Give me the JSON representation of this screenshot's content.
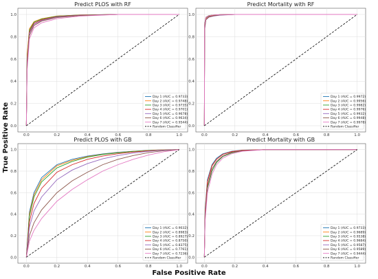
{
  "figure": {
    "xlabel": "False Positive Rate",
    "ylabel": "True Positive Rate"
  },
  "chart_data": [
    {
      "type": "line",
      "title": "Predict PLOS with RF",
      "xlim": [
        0,
        1
      ],
      "ylim": [
        0,
        1
      ],
      "xticks": [
        "0.0",
        "0.2",
        "0.4",
        "0.6",
        "0.8",
        "1.0"
      ],
      "yticks": [
        "0.0",
        "0.2",
        "0.4",
        "0.6",
        "0.8",
        "1.0"
      ],
      "grid": true,
      "legend": "bottom-right",
      "series": [
        {
          "name": "Day 1 (AUC = 0.9733)",
          "color": "#1f77b4",
          "x": [
            0,
            0.005,
            0.02,
            0.05,
            0.1,
            0.2,
            0.35,
            0.6,
            1
          ],
          "y": [
            0,
            0.62,
            0.86,
            0.93,
            0.96,
            0.985,
            0.995,
            1,
            1
          ]
        },
        {
          "name": "Day 2 (AUC = 0.9748)",
          "color": "#ff7f0e",
          "x": [
            0,
            0.005,
            0.02,
            0.05,
            0.1,
            0.2,
            0.35,
            0.6,
            1
          ],
          "y": [
            0,
            0.64,
            0.87,
            0.935,
            0.962,
            0.986,
            0.995,
            1,
            1
          ]
        },
        {
          "name": "Day 3 (AUC = 0.9735)",
          "color": "#2ca02c",
          "x": [
            0,
            0.005,
            0.02,
            0.05,
            0.1,
            0.2,
            0.35,
            0.6,
            1
          ],
          "y": [
            0,
            0.6,
            0.855,
            0.93,
            0.958,
            0.984,
            0.994,
            1,
            1
          ]
        },
        {
          "name": "Day 4 (AUC = 0.9701)",
          "color": "#d62728",
          "x": [
            0,
            0.005,
            0.02,
            0.05,
            0.1,
            0.2,
            0.35,
            0.6,
            1
          ],
          "y": [
            0,
            0.58,
            0.84,
            0.92,
            0.952,
            0.98,
            0.993,
            1,
            1
          ]
        },
        {
          "name": "Day 5 (AUC = 0.9678)",
          "color": "#9467bd",
          "x": [
            0,
            0.005,
            0.02,
            0.05,
            0.1,
            0.2,
            0.35,
            0.6,
            1
          ],
          "y": [
            0,
            0.56,
            0.83,
            0.91,
            0.946,
            0.977,
            0.992,
            1,
            1
          ]
        },
        {
          "name": "Day 6 (AUC = 0.9634)",
          "color": "#8c564b",
          "x": [
            0,
            0.005,
            0.02,
            0.05,
            0.1,
            0.2,
            0.35,
            0.6,
            1
          ],
          "y": [
            0,
            0.54,
            0.81,
            0.9,
            0.94,
            0.972,
            0.99,
            1,
            1
          ]
        },
        {
          "name": "Day 7 (AUC = 0.9544)",
          "color": "#e377c2",
          "x": [
            0,
            0.005,
            0.02,
            0.05,
            0.1,
            0.2,
            0.35,
            0.6,
            1
          ],
          "y": [
            0,
            0.5,
            0.78,
            0.88,
            0.925,
            0.962,
            0.985,
            1,
            1
          ]
        },
        {
          "name": "Random Classifier",
          "color": "#000000",
          "dashed": true,
          "x": [
            0,
            1
          ],
          "y": [
            0,
            1
          ]
        }
      ]
    },
    {
      "type": "line",
      "title": "Predict Mortality with RF",
      "xlim": [
        0,
        1
      ],
      "ylim": [
        0,
        1
      ],
      "xticks": [
        "0.0",
        "0.2",
        "0.4",
        "0.6",
        "0.8",
        "1.0"
      ],
      "yticks": [
        "0.0",
        "0.2",
        "0.4",
        "0.6",
        "0.8",
        "1.0"
      ],
      "grid": true,
      "legend": "bottom-right",
      "series": [
        {
          "name": "Day 1 (AUC = 0.9972)",
          "color": "#1f77b4",
          "x": [
            0,
            0.002,
            0.01,
            0.03,
            0.06,
            0.1,
            0.2,
            1
          ],
          "y": [
            0,
            0.9,
            0.97,
            0.985,
            0.993,
            0.997,
            1,
            1
          ]
        },
        {
          "name": "Day 2 (AUC = 0.9956)",
          "color": "#ff7f0e",
          "x": [
            0,
            0.002,
            0.01,
            0.03,
            0.06,
            0.1,
            0.2,
            1
          ],
          "y": [
            0,
            0.88,
            0.96,
            0.98,
            0.99,
            0.996,
            1,
            1
          ]
        },
        {
          "name": "Day 3 (AUC = 0.9982)",
          "color": "#2ca02c",
          "x": [
            0,
            0.002,
            0.01,
            0.03,
            0.06,
            0.1,
            0.2,
            1
          ],
          "y": [
            0,
            0.92,
            0.975,
            0.99,
            0.995,
            0.998,
            1,
            1
          ]
        },
        {
          "name": "Day 4 (AUC = 0.9976)",
          "color": "#d62728",
          "x": [
            0,
            0.002,
            0.01,
            0.03,
            0.06,
            0.1,
            0.2,
            1
          ],
          "y": [
            0,
            0.91,
            0.972,
            0.988,
            0.994,
            0.998,
            1,
            1
          ]
        },
        {
          "name": "Day 5 (AUC = 0.9932)",
          "color": "#9467bd",
          "x": [
            0,
            0.002,
            0.01,
            0.03,
            0.06,
            0.1,
            0.2,
            1
          ],
          "y": [
            0,
            0.86,
            0.95,
            0.975,
            0.985,
            0.993,
            1,
            1
          ]
        },
        {
          "name": "Day 6 (AUC = 0.9948)",
          "color": "#8c564b",
          "x": [
            0,
            0.002,
            0.01,
            0.03,
            0.06,
            0.1,
            0.2,
            1
          ],
          "y": [
            0,
            0.87,
            0.955,
            0.978,
            0.988,
            0.995,
            1,
            1
          ]
        },
        {
          "name": "Day 7 (AUC = 0.9978)",
          "color": "#e377c2",
          "x": [
            0,
            0.002,
            0.01,
            0.03,
            0.06,
            0.1,
            0.2,
            1
          ],
          "y": [
            0,
            0.91,
            0.974,
            0.989,
            0.995,
            0.998,
            1,
            1
          ]
        },
        {
          "name": "Random Classifier",
          "color": "#000000",
          "dashed": true,
          "x": [
            0,
            1
          ],
          "y": [
            0,
            1
          ]
        }
      ]
    },
    {
      "type": "line",
      "title": "Predict PLOS with GB",
      "xlim": [
        0,
        1
      ],
      "ylim": [
        0,
        1
      ],
      "xticks": [
        "0.0",
        "0.2",
        "0.4",
        "0.6",
        "0.8",
        "1.0"
      ],
      "yticks": [
        "0.0",
        "0.2",
        "0.4",
        "0.6",
        "0.8",
        "1.0"
      ],
      "grid": true,
      "legend": "bottom-right",
      "series": [
        {
          "name": "Day 1 (AUC = 0.9032)",
          "color": "#1f77b4",
          "x": [
            0,
            0.02,
            0.05,
            0.1,
            0.2,
            0.3,
            0.4,
            0.5,
            0.6,
            0.7,
            0.8,
            0.9,
            1
          ],
          "y": [
            0,
            0.42,
            0.6,
            0.74,
            0.86,
            0.91,
            0.94,
            0.96,
            0.975,
            0.985,
            0.993,
            0.998,
            1
          ]
        },
        {
          "name": "Day 2 (AUC = 0.8983)",
          "color": "#ff7f0e",
          "x": [
            0,
            0.02,
            0.05,
            0.1,
            0.2,
            0.3,
            0.4,
            0.5,
            0.6,
            0.7,
            0.8,
            0.9,
            1
          ],
          "y": [
            0,
            0.4,
            0.58,
            0.72,
            0.85,
            0.9,
            0.935,
            0.957,
            0.972,
            0.984,
            0.992,
            0.998,
            1
          ]
        },
        {
          "name": "Day 3 (AUC = 0.8927)",
          "color": "#2ca02c",
          "x": [
            0,
            0.02,
            0.05,
            0.1,
            0.2,
            0.3,
            0.4,
            0.5,
            0.6,
            0.7,
            0.8,
            0.9,
            1
          ],
          "y": [
            0,
            0.38,
            0.56,
            0.7,
            0.83,
            0.89,
            0.93,
            0.955,
            0.97,
            0.983,
            0.991,
            0.997,
            1
          ]
        },
        {
          "name": "Day 4 (AUC = 0.8750)",
          "color": "#d62728",
          "x": [
            0,
            0.02,
            0.05,
            0.1,
            0.2,
            0.3,
            0.4,
            0.5,
            0.6,
            0.7,
            0.8,
            0.9,
            1
          ],
          "y": [
            0,
            0.33,
            0.5,
            0.64,
            0.79,
            0.86,
            0.91,
            0.94,
            0.962,
            0.978,
            0.989,
            0.996,
            1
          ]
        },
        {
          "name": "Day 5 (AUC = 0.8375)",
          "color": "#9467bd",
          "x": [
            0,
            0.02,
            0.05,
            0.1,
            0.2,
            0.3,
            0.4,
            0.5,
            0.6,
            0.7,
            0.8,
            0.9,
            1
          ],
          "y": [
            0,
            0.28,
            0.43,
            0.56,
            0.72,
            0.81,
            0.87,
            0.915,
            0.945,
            0.968,
            0.984,
            0.995,
            1
          ]
        },
        {
          "name": "Day 6 (AUC = 0.7761)",
          "color": "#8c564b",
          "x": [
            0,
            0.02,
            0.05,
            0.1,
            0.2,
            0.3,
            0.4,
            0.5,
            0.6,
            0.7,
            0.8,
            0.9,
            1
          ],
          "y": [
            0,
            0.2,
            0.32,
            0.44,
            0.6,
            0.71,
            0.79,
            0.86,
            0.91,
            0.945,
            0.972,
            0.99,
            1
          ]
        },
        {
          "name": "Day 7 (AUC = 0.7236)",
          "color": "#e377c2",
          "x": [
            0,
            0.02,
            0.05,
            0.1,
            0.2,
            0.3,
            0.4,
            0.5,
            0.6,
            0.7,
            0.8,
            0.9,
            1
          ],
          "y": [
            0,
            0.15,
            0.25,
            0.36,
            0.52,
            0.63,
            0.72,
            0.8,
            0.86,
            0.91,
            0.95,
            0.98,
            1
          ]
        },
        {
          "name": "Random Classifier",
          "color": "#000000",
          "dashed": true,
          "x": [
            0,
            1
          ],
          "y": [
            0,
            1
          ]
        }
      ]
    },
    {
      "type": "line",
      "title": "Predict Mortality with GB",
      "xlim": [
        0,
        1
      ],
      "ylim": [
        0,
        1
      ],
      "xticks": [
        "0.0",
        "0.2",
        "0.4",
        "0.6",
        "0.8",
        "1.0"
      ],
      "yticks": [
        "0.0",
        "0.2",
        "0.4",
        "0.6",
        "0.8",
        "1.0"
      ],
      "grid": true,
      "legend": "bottom-right",
      "series": [
        {
          "name": "Day 1 (AUC = 0.9733)",
          "color": "#1f77b4",
          "x": [
            0,
            0.005,
            0.02,
            0.05,
            0.08,
            0.12,
            0.18,
            0.25,
            0.4,
            1
          ],
          "y": [
            0,
            0.45,
            0.72,
            0.86,
            0.92,
            0.96,
            0.985,
            0.995,
            1,
            1
          ]
        },
        {
          "name": "Day 2 (AUC = 0.9689)",
          "color": "#ff7f0e",
          "x": [
            0,
            0.005,
            0.02,
            0.05,
            0.08,
            0.12,
            0.18,
            0.25,
            0.4,
            1
          ],
          "y": [
            0,
            0.43,
            0.7,
            0.85,
            0.91,
            0.955,
            0.982,
            0.994,
            1,
            1
          ]
        },
        {
          "name": "Day 3 (AUC = 0.9538)",
          "color": "#2ca02c",
          "x": [
            0,
            0.005,
            0.02,
            0.05,
            0.08,
            0.12,
            0.18,
            0.25,
            0.4,
            1
          ],
          "y": [
            0,
            0.38,
            0.64,
            0.8,
            0.88,
            0.935,
            0.97,
            0.99,
            1,
            1
          ]
        },
        {
          "name": "Day 4 (AUC = 0.9684)",
          "color": "#d62728",
          "x": [
            0,
            0.005,
            0.02,
            0.05,
            0.08,
            0.12,
            0.18,
            0.25,
            0.4,
            1
          ],
          "y": [
            0,
            0.42,
            0.7,
            0.85,
            0.91,
            0.955,
            0.982,
            0.994,
            1,
            1
          ]
        },
        {
          "name": "Day 5 (AUC = 0.9587)",
          "color": "#9467bd",
          "x": [
            0,
            0.005,
            0.02,
            0.05,
            0.08,
            0.12,
            0.18,
            0.25,
            0.4,
            1
          ],
          "y": [
            0,
            0.4,
            0.66,
            0.82,
            0.89,
            0.94,
            0.975,
            0.99,
            1,
            1
          ]
        },
        {
          "name": "Day 6 (AUC = 0.9589)",
          "color": "#8c564b",
          "x": [
            0,
            0.005,
            0.02,
            0.05,
            0.08,
            0.12,
            0.18,
            0.25,
            0.4,
            1
          ],
          "y": [
            0,
            0.4,
            0.66,
            0.82,
            0.89,
            0.94,
            0.975,
            0.99,
            1,
            1
          ]
        },
        {
          "name": "Day 7 (AUC = 0.9444)",
          "color": "#e377c2",
          "x": [
            0,
            0.005,
            0.02,
            0.05,
            0.08,
            0.12,
            0.18,
            0.25,
            0.4,
            1
          ],
          "y": [
            0,
            0.34,
            0.6,
            0.77,
            0.86,
            0.92,
            0.962,
            0.985,
            1,
            1
          ]
        },
        {
          "name": "Random Classifier",
          "color": "#000000",
          "dashed": true,
          "x": [
            0,
            1
          ],
          "y": [
            0,
            1
          ]
        }
      ]
    }
  ]
}
